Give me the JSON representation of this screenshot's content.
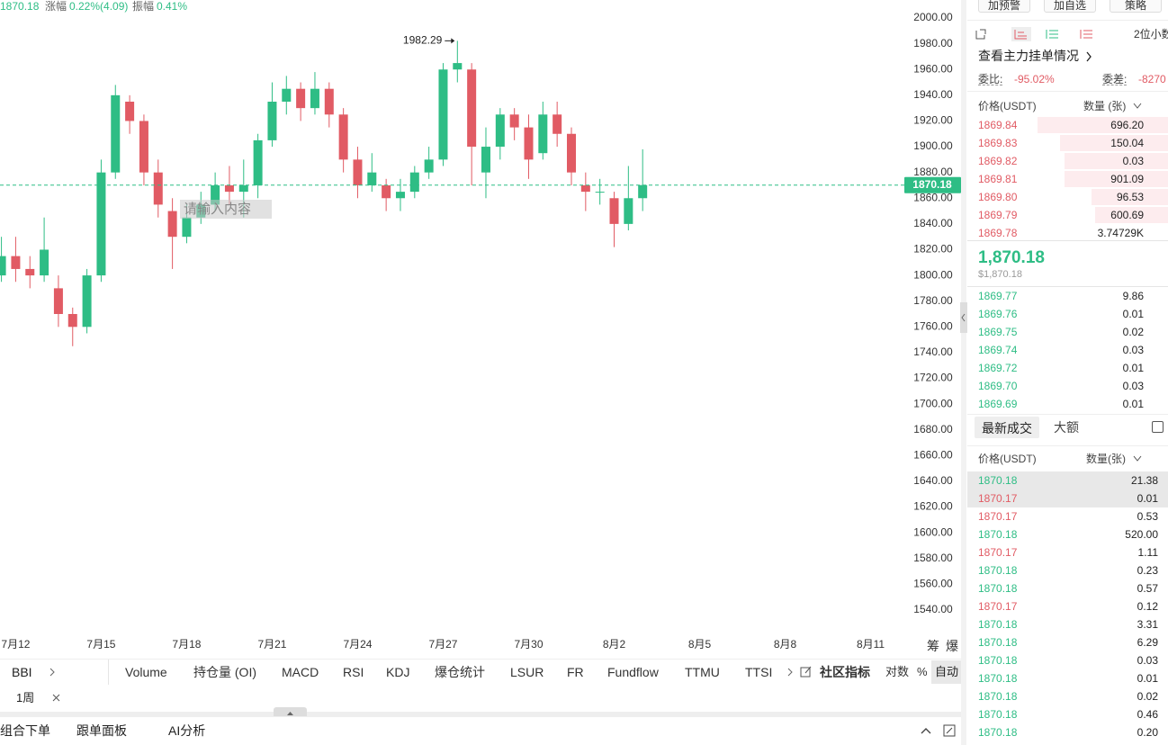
{
  "header": {
    "price": "1870.18",
    "change_label": "涨幅",
    "change": "0.22%(4.09)",
    "amplitude_label": "振幅",
    "amplitude": "0.41%"
  },
  "chart_data": {
    "type": "candlestick",
    "up_color": "#2ebd85",
    "down_color": "#e15b64",
    "candles": [
      {
        "open": 1800,
        "high": 1830,
        "low": 1795,
        "close": 1815
      },
      {
        "open": 1815,
        "high": 1830,
        "low": 1795,
        "close": 1805
      },
      {
        "open": 1805,
        "high": 1815,
        "low": 1790,
        "close": 1800
      },
      {
        "open": 1800,
        "high": 1845,
        "low": 1795,
        "close": 1820
      },
      {
        "open": 1790,
        "high": 1800,
        "low": 1760,
        "close": 1770
      },
      {
        "open": 1770,
        "high": 1775,
        "low": 1745,
        "close": 1760
      },
      {
        "open": 1760,
        "high": 1805,
        "low": 1755,
        "close": 1800
      },
      {
        "open": 1800,
        "high": 1890,
        "low": 1795,
        "close": 1880
      },
      {
        "open": 1880,
        "high": 1948,
        "low": 1875,
        "close": 1940
      },
      {
        "open": 1935,
        "high": 1940,
        "low": 1910,
        "close": 1920
      },
      {
        "open": 1920,
        "high": 1925,
        "low": 1870,
        "close": 1880
      },
      {
        "open": 1880,
        "high": 1890,
        "low": 1845,
        "close": 1855
      },
      {
        "open": 1850,
        "high": 1860,
        "low": 1805,
        "close": 1830
      },
      {
        "open": 1830,
        "high": 1855,
        "low": 1825,
        "close": 1845
      },
      {
        "open": 1845,
        "high": 1865,
        "low": 1840,
        "close": 1855
      },
      {
        "open": 1855,
        "high": 1880,
        "low": 1850,
        "close": 1870
      },
      {
        "open": 1870,
        "high": 1885,
        "low": 1855,
        "close": 1865
      },
      {
        "open": 1865,
        "high": 1890,
        "low": 1845,
        "close": 1870
      },
      {
        "open": 1870,
        "high": 1910,
        "low": 1860,
        "close": 1905
      },
      {
        "open": 1905,
        "high": 1950,
        "low": 1900,
        "close": 1935
      },
      {
        "open": 1935,
        "high": 1955,
        "low": 1925,
        "close": 1945
      },
      {
        "open": 1945,
        "high": 1950,
        "low": 1920,
        "close": 1930
      },
      {
        "open": 1930,
        "high": 1958,
        "low": 1925,
        "close": 1945
      },
      {
        "open": 1945,
        "high": 1950,
        "low": 1915,
        "close": 1925
      },
      {
        "open": 1925,
        "high": 1930,
        "low": 1880,
        "close": 1890
      },
      {
        "open": 1890,
        "high": 1900,
        "low": 1860,
        "close": 1870
      },
      {
        "open": 1870,
        "high": 1895,
        "low": 1865,
        "close": 1880
      },
      {
        "open": 1870,
        "high": 1875,
        "low": 1850,
        "close": 1860
      },
      {
        "open": 1860,
        "high": 1875,
        "low": 1850,
        "close": 1865
      },
      {
        "open": 1865,
        "high": 1885,
        "low": 1860,
        "close": 1880
      },
      {
        "open": 1880,
        "high": 1900,
        "low": 1875,
        "close": 1890
      },
      {
        "open": 1890,
        "high": 1965,
        "low": 1885,
        "close": 1960
      },
      {
        "open": 1960,
        "high": 1982.29,
        "low": 1950,
        "close": 1965
      },
      {
        "open": 1960,
        "high": 1965,
        "low": 1870,
        "close": 1900
      },
      {
        "open": 1880,
        "high": 1915,
        "low": 1860,
        "close": 1900
      },
      {
        "open": 1900,
        "high": 1930,
        "low": 1890,
        "close": 1925
      },
      {
        "open": 1925,
        "high": 1930,
        "low": 1905,
        "close": 1915
      },
      {
        "open": 1915,
        "high": 1925,
        "low": 1875,
        "close": 1890
      },
      {
        "open": 1895,
        "high": 1935,
        "low": 1890,
        "close": 1925
      },
      {
        "open": 1925,
        "high": 1935,
        "low": 1900,
        "close": 1910
      },
      {
        "open": 1910,
        "high": 1915,
        "low": 1870,
        "close": 1880
      },
      {
        "open": 1870,
        "high": 1880,
        "low": 1850,
        "close": 1865
      },
      {
        "open": 1865,
        "high": 1875,
        "low": 1855,
        "close": 1865
      },
      {
        "open": 1860,
        "high": 1865,
        "low": 1822,
        "close": 1840
      },
      {
        "open": 1840,
        "high": 1885,
        "low": 1835,
        "close": 1860
      },
      {
        "open": 1860,
        "high": 1898,
        "low": 1850,
        "close": 1870.18
      }
    ],
    "xlim": [
      -0.1,
      63.05
    ],
    "xticks": [
      {
        "value": 1,
        "label": "7月12"
      },
      {
        "value": 7,
        "label": "7月15"
      },
      {
        "value": 13,
        "label": "7月18"
      },
      {
        "value": 19,
        "label": "7月21"
      },
      {
        "value": 25,
        "label": "7月24"
      },
      {
        "value": 31,
        "label": "7月27"
      },
      {
        "value": 37,
        "label": "7月30"
      },
      {
        "value": 43,
        "label": "8月2"
      },
      {
        "value": 49,
        "label": "8月5"
      },
      {
        "value": 55,
        "label": "8月8"
      },
      {
        "value": 61,
        "label": "8月11"
      }
    ],
    "ylim": [
      1524.6,
      2014
    ],
    "yticks": [
      {
        "value": 2000,
        "label": "2000.00"
      },
      {
        "value": 1980,
        "label": "1980.00"
      },
      {
        "value": 1960,
        "label": "1960.00"
      },
      {
        "value": 1940,
        "label": "1940.00"
      },
      {
        "value": 1920,
        "label": "1920.00"
      },
      {
        "value": 1900,
        "label": "1900.00"
      },
      {
        "value": 1880,
        "label": "1880.00"
      },
      {
        "value": 1860,
        "label": "1860.00"
      },
      {
        "value": 1840,
        "label": "1840.00"
      },
      {
        "value": 1820,
        "label": "1820.00"
      },
      {
        "value": 1800,
        "label": "1800.00"
      },
      {
        "value": 1780,
        "label": "1780.00"
      },
      {
        "value": 1760,
        "label": "1760.00"
      },
      {
        "value": 1740,
        "label": "1740.00"
      },
      {
        "value": 1720,
        "label": "1720.00"
      },
      {
        "value": 1700,
        "label": "1700.00"
      },
      {
        "value": 1680,
        "label": "1680.00"
      },
      {
        "value": 1660,
        "label": "1660.00"
      },
      {
        "value": 1640,
        "label": "1640.00"
      },
      {
        "value": 1620,
        "label": "1620.00"
      },
      {
        "value": 1600,
        "label": "1600.00"
      },
      {
        "value": 1580,
        "label": "1580.00"
      },
      {
        "value": 1560,
        "label": "1560.00"
      },
      {
        "value": 1540,
        "label": "1540.00"
      }
    ],
    "last_price": {
      "value": 1870.18,
      "label": "1870.18"
    },
    "high_marker": {
      "value": 1982.29,
      "label": "1982.29"
    }
  },
  "input_placeholder": "请输入内容",
  "axis_tools": [
    "筹",
    "爆"
  ],
  "indicator_bar": {
    "current": "BBI",
    "items": [
      "Volume",
      "持仓量 (OI)",
      "MACD",
      "RSI",
      "KDJ",
      "爆仓统计",
      "LSUR",
      "FR",
      "Fundflow",
      "TTMU",
      "TTSI"
    ],
    "community": "社区指标",
    "log": "对数",
    "percent": "%",
    "auto": "自动"
  },
  "period_tag": "1周",
  "bottom_tabs": [
    "组合下单",
    "跟单面板",
    "AI分析"
  ],
  "order_panel": {
    "buttons": [
      "加预警",
      "加自选",
      "策略"
    ],
    "precision": "2位小数",
    "main_orders": "查看主力挂单情况",
    "ratio_label": "委比:",
    "ratio": "-95.02%",
    "diff_label": "委差:",
    "diff": "-8270",
    "price_header": "价格(USDT)",
    "qty_header": "数量 (张)",
    "asks": [
      {
        "price": "1869.84",
        "qty": "696.20"
      },
      {
        "price": "1869.83",
        "qty": "150.04"
      },
      {
        "price": "1869.82",
        "qty": "0.03"
      },
      {
        "price": "1869.81",
        "qty": "901.09"
      },
      {
        "price": "1869.80",
        "qty": "96.53"
      },
      {
        "price": "1869.79",
        "qty": "600.69"
      },
      {
        "price": "1869.78",
        "qty": "3.74729K"
      }
    ],
    "last": "1,870.18",
    "last_usd": "$1,870.18",
    "bids": [
      {
        "price": "1869.77",
        "qty": "9.86"
      },
      {
        "price": "1869.76",
        "qty": "0.01"
      },
      {
        "price": "1869.75",
        "qty": "0.02"
      },
      {
        "price": "1869.74",
        "qty": "0.03"
      },
      {
        "price": "1869.72",
        "qty": "0.01"
      },
      {
        "price": "1869.70",
        "qty": "0.03"
      },
      {
        "price": "1869.69",
        "qty": "0.01"
      }
    ]
  },
  "trades": {
    "tabs": [
      "最新成交",
      "大额"
    ],
    "price_header": "价格(USDT)",
    "qty_header": "数量(张)",
    "rows": [
      {
        "price": "1870.18",
        "qty": "21.38",
        "color": "#2ebd85"
      },
      {
        "price": "1870.17",
        "qty": "0.01",
        "color": "#e15b64"
      },
      {
        "price": "1870.17",
        "qty": "0.53",
        "color": "#e15b64"
      },
      {
        "price": "1870.18",
        "qty": "520.00",
        "color": "#2ebd85"
      },
      {
        "price": "1870.17",
        "qty": "1.11",
        "color": "#e15b64"
      },
      {
        "price": "1870.18",
        "qty": "0.23",
        "color": "#2ebd85"
      },
      {
        "price": "1870.18",
        "qty": "0.57",
        "color": "#2ebd85"
      },
      {
        "price": "1870.17",
        "qty": "0.12",
        "color": "#e15b64"
      },
      {
        "price": "1870.18",
        "qty": "3.31",
        "color": "#2ebd85"
      },
      {
        "price": "1870.18",
        "qty": "6.29",
        "color": "#2ebd85"
      },
      {
        "price": "1870.18",
        "qty": "0.03",
        "color": "#2ebd85"
      },
      {
        "price": "1870.18",
        "qty": "0.01",
        "color": "#2ebd85"
      },
      {
        "price": "1870.18",
        "qty": "0.02",
        "color": "#2ebd85"
      },
      {
        "price": "1870.18",
        "qty": "0.46",
        "color": "#2ebd85"
      },
      {
        "price": "1870.18",
        "qty": "0.20",
        "color": "#2ebd85"
      }
    ]
  }
}
